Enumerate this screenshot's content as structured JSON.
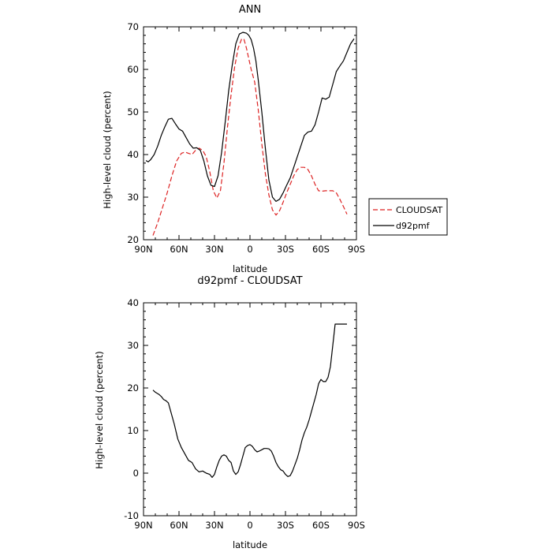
{
  "colors": {
    "cloudsat": "#dd2222",
    "model": "#000000",
    "axis": "#000000"
  },
  "chart_data": [
    {
      "type": "line",
      "title": "ANN",
      "xlabel": "latitude",
      "ylabel": "High-level cloud (percent)",
      "xlim": [
        -90,
        90
      ],
      "ylim": [
        20,
        70
      ],
      "xticks": [
        -90,
        -60,
        -30,
        0,
        30,
        60,
        90
      ],
      "xticklabels": [
        "90N",
        "60N",
        "30N",
        "0",
        "30S",
        "60S",
        "90S"
      ],
      "yticks": [
        20,
        30,
        40,
        50,
        60,
        70
      ],
      "yticklabels": [
        "20",
        "30",
        "40",
        "50",
        "60",
        "70"
      ],
      "legend": {
        "position": "right"
      },
      "series": [
        {
          "name": "CLOUDSAT",
          "style": "dashed",
          "color": "#dd2222",
          "x": [
            -82,
            -78,
            -74,
            -70,
            -66,
            -62,
            -58,
            -55,
            -52,
            -49,
            -46,
            -43,
            -40,
            -37,
            -34,
            -31,
            -28,
            -25,
            -22,
            -19,
            -16,
            -13,
            -10,
            -7,
            -5,
            -3,
            -1,
            1,
            4,
            7,
            10,
            13,
            16,
            19,
            22,
            25,
            28,
            31,
            34,
            37,
            40,
            43,
            46,
            49,
            52,
            55,
            58,
            61,
            64,
            67,
            70,
            73,
            76,
            79,
            82
          ],
          "y": [
            21.0,
            24.0,
            27.5,
            31.0,
            35.0,
            38.5,
            40.3,
            40.6,
            40.3,
            40.0,
            41.0,
            41.5,
            41.0,
            39.5,
            36.0,
            31.5,
            29.8,
            31.5,
            38.0,
            46.5,
            54.0,
            60.5,
            65.0,
            67.2,
            67.0,
            65.0,
            62.5,
            60.0,
            57.0,
            50.5,
            42.5,
            35.5,
            30.5,
            27.0,
            25.8,
            26.8,
            28.8,
            31.0,
            33.0,
            35.0,
            36.5,
            37.0,
            37.0,
            36.5,
            35.0,
            33.0,
            31.5,
            31.4,
            31.5,
            31.5,
            31.5,
            31.0,
            29.5,
            27.8,
            26.0
          ]
        },
        {
          "name": "d92pmf",
          "style": "solid",
          "color": "#000000",
          "x": [
            -88,
            -86,
            -84,
            -81,
            -78,
            -75,
            -72,
            -69,
            -66,
            -63,
            -60,
            -57,
            -54,
            -51,
            -48,
            -45,
            -42,
            -39,
            -36,
            -33,
            -30,
            -27,
            -24,
            -21,
            -18,
            -15,
            -12,
            -9,
            -6,
            -3,
            -1,
            1,
            3,
            5,
            7,
            10,
            13,
            16,
            19,
            22,
            25,
            28,
            31,
            34,
            37,
            40,
            43,
            46,
            49,
            52,
            55,
            58,
            61,
            64,
            67,
            70,
            73,
            76,
            79,
            82,
            85,
            88
          ],
          "y": [
            38.6,
            38.3,
            38.8,
            40.0,
            42.0,
            44.5,
            46.5,
            48.3,
            48.5,
            47.2,
            46.0,
            45.5,
            44.0,
            42.5,
            41.5,
            41.6,
            41.0,
            38.5,
            35.0,
            32.8,
            32.5,
            35.0,
            40.5,
            47.5,
            55.0,
            61.0,
            66.0,
            68.3,
            68.7,
            68.5,
            68.0,
            67.0,
            65.0,
            62.0,
            57.5,
            50.0,
            41.5,
            34.0,
            30.0,
            29.0,
            29.5,
            31.0,
            32.8,
            34.5,
            37.0,
            39.5,
            42.0,
            44.5,
            45.3,
            45.5,
            47.0,
            50.0,
            53.3,
            53.0,
            53.5,
            56.5,
            59.5,
            60.8,
            62.0,
            64.0,
            66.0,
            67.2
          ]
        }
      ]
    },
    {
      "type": "line",
      "title": "d92pmf - CLOUDSAT",
      "xlabel": "latitude",
      "ylabel": "High-level cloud (percent)",
      "xlim": [
        -90,
        90
      ],
      "ylim": [
        -10,
        40
      ],
      "xticks": [
        -90,
        -60,
        -30,
        0,
        30,
        60,
        90
      ],
      "xticklabels": [
        "90N",
        "60N",
        "30N",
        "0",
        "30S",
        "60S",
        "90S"
      ],
      "yticks": [
        -10,
        0,
        10,
        20,
        30,
        40
      ],
      "yticklabels": [
        "-10",
        "0",
        "10",
        "20",
        "30",
        "40"
      ],
      "series": [
        {
          "style": "solid",
          "color": "#000000",
          "x": [
            -82,
            -80,
            -77,
            -75,
            -73,
            -71,
            -69,
            -67,
            -64,
            -61,
            -58,
            -55,
            -52,
            -49,
            -46,
            -43,
            -40,
            -37,
            -34,
            -32,
            -30,
            -28,
            -26,
            -24,
            -22,
            -20,
            -18,
            -16,
            -14,
            -12,
            -10,
            -8,
            -6,
            -4,
            -2,
            0,
            2,
            4,
            6,
            8,
            10,
            12,
            14,
            16,
            18,
            20,
            22,
            24,
            26,
            28,
            30,
            32,
            34,
            36,
            38,
            40,
            42,
            44,
            46,
            48,
            50,
            52,
            54,
            56,
            58,
            60,
            62,
            64,
            66,
            68,
            70,
            72,
            74,
            76,
            78,
            80,
            82
          ],
          "y": [
            19.5,
            19.0,
            18.5,
            18.0,
            17.3,
            17.0,
            16.5,
            14.5,
            11.5,
            8.0,
            6.0,
            4.5,
            3.0,
            2.5,
            1.0,
            0.3,
            0.5,
            0.0,
            -0.3,
            -1.0,
            -0.3,
            1.5,
            3.0,
            4.0,
            4.3,
            4.0,
            3.0,
            2.5,
            0.5,
            -0.3,
            0.3,
            2.0,
            4.0,
            6.0,
            6.5,
            6.7,
            6.3,
            5.5,
            5.0,
            5.2,
            5.5,
            5.8,
            5.8,
            5.7,
            5.2,
            4.0,
            2.5,
            1.5,
            0.8,
            0.5,
            -0.3,
            -0.8,
            -0.6,
            0.5,
            2.0,
            3.5,
            5.5,
            7.8,
            9.5,
            10.8,
            12.5,
            14.5,
            16.5,
            18.5,
            21.0,
            22.0,
            21.5,
            21.5,
            22.5,
            25.0,
            30.0,
            35.0,
            35.0,
            35.0,
            35.0,
            35.0,
            35.0
          ]
        }
      ]
    }
  ],
  "legend_labels": [
    "CLOUDSAT",
    "d92pmf"
  ]
}
